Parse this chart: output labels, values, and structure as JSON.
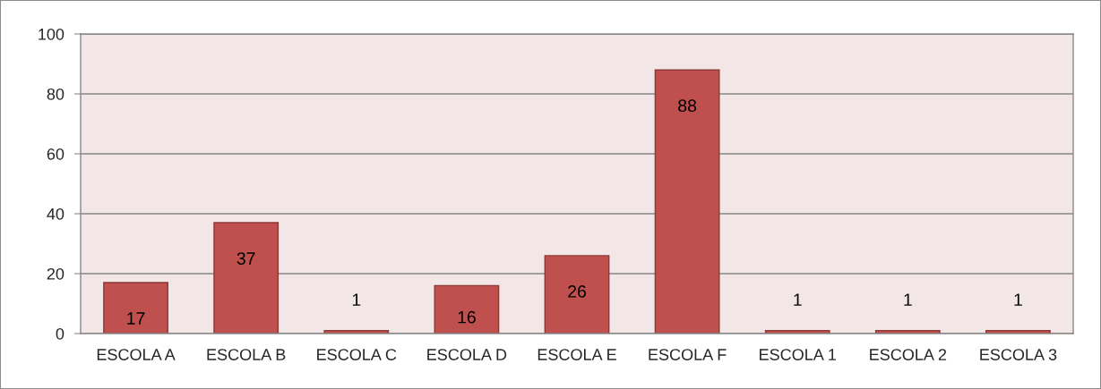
{
  "chart_data": {
    "type": "bar",
    "categories": [
      "ESCOLA A",
      "ESCOLA B",
      "ESCOLA C",
      "ESCOLA D",
      "ESCOLA E",
      "ESCOLA F",
      "ESCOLA 1",
      "ESCOLA 2",
      "ESCOLA 3"
    ],
    "values": [
      17,
      37,
      1,
      16,
      26,
      88,
      1,
      1,
      1
    ],
    "color": "#c0504d",
    "ylim": [
      0,
      100
    ],
    "yticks": [
      0,
      20,
      40,
      60,
      80,
      100
    ],
    "grid": "y",
    "data_labels": true,
    "legend": false
  }
}
